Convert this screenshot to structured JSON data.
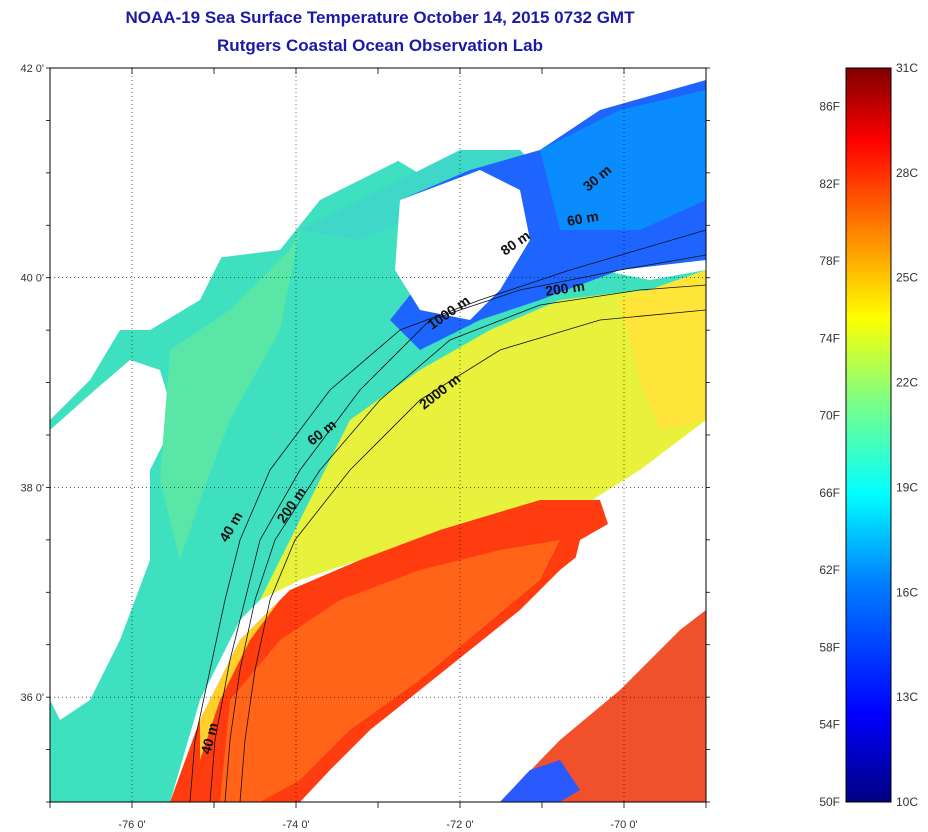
{
  "title_line1": "NOAA-19 Sea Surface Temperature October 14, 2015 0732 GMT",
  "title_line2": "Rutgers Coastal Ocean Observation Lab",
  "map": {
    "lat_labels": [
      "42 0'",
      "40 0'",
      "38 0'",
      "36 0'"
    ],
    "lon_labels": [
      "-76 0'",
      "-74 0'",
      "-72 0'",
      "-70 0'"
    ],
    "lat_values": [
      42,
      40,
      38,
      36
    ],
    "lon_values": [
      -76,
      -74,
      -72,
      -70
    ],
    "extent": {
      "lon_min": -77,
      "lon_max": -69,
      "lat_min": 35,
      "lat_max": 42
    },
    "contour_labels": [
      "30 m",
      "60 m",
      "80 m",
      "200 m",
      "1000 m",
      "2000 m",
      "60 m",
      "200 m",
      "40 m",
      "40 m"
    ]
  },
  "colorbar": {
    "fahrenheit_labels": [
      "86F",
      "82F",
      "78F",
      "74F",
      "70F",
      "66F",
      "62F",
      "58F",
      "54F",
      "50F"
    ],
    "celsius_labels": [
      "31C",
      "28C",
      "25C",
      "22C",
      "19C",
      "16C",
      "13C",
      "10C"
    ],
    "colors": [
      "#000080",
      "#0000ff",
      "#0080ff",
      "#00ffff",
      "#80ff80",
      "#ffff00",
      "#ff8000",
      "#ff0000",
      "#800000"
    ]
  }
}
